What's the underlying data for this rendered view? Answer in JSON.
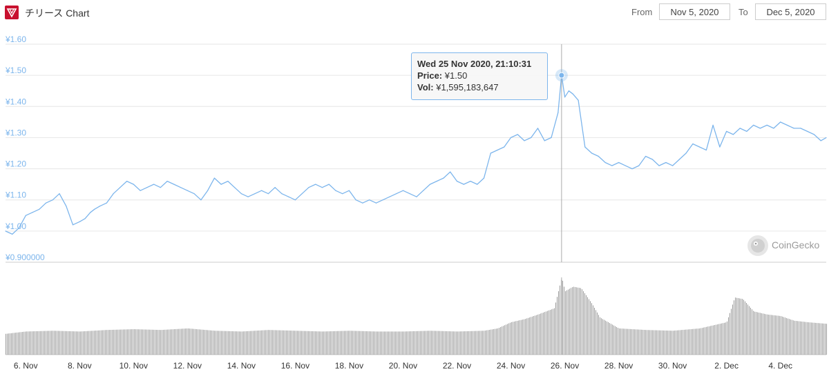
{
  "header": {
    "title": "チリース Chart",
    "from_label": "From",
    "from_value": "Nov 5, 2020",
    "to_label": "To",
    "to_value": "Dec 5, 2020"
  },
  "tooltip": {
    "date": "Wed 25 Nov 2020, 21:10:31",
    "price_label": "Price:",
    "price_value": "¥1.50",
    "vol_label": "Vol:",
    "vol_value": "¥1,595,183,647"
  },
  "watermark": "CoinGecko",
  "colors": {
    "line": "#7cb5ec",
    "volume": "#999999",
    "brand": "#c8102e",
    "axis_text": "#7cb5ec"
  },
  "chart_data": {
    "type": "line",
    "title": "チリース Chart",
    "xlabel": "",
    "ylabel": "",
    "y_tick_labels": [
      "¥0.900000",
      "¥1.00",
      "¥1.10",
      "¥1.20",
      "¥1.30",
      "¥1.40",
      "¥1.50",
      "¥1.60"
    ],
    "y_ticks": [
      0.9,
      1.0,
      1.1,
      1.2,
      1.3,
      1.4,
      1.5,
      1.6
    ],
    "ylim": [
      0.9,
      1.6
    ],
    "xlim": [
      5.25,
      35.7
    ],
    "x_tick_labels": [
      "6. Nov",
      "8. Nov",
      "10. Nov",
      "12. Nov",
      "14. Nov",
      "16. Nov",
      "18. Nov",
      "20. Nov",
      "22. Nov",
      "24. Nov",
      "26. Nov",
      "28. Nov",
      "30. Nov",
      "2. Dec",
      "4. Dec"
    ],
    "x_ticks": [
      6,
      8,
      10,
      12,
      14,
      16,
      18,
      20,
      22,
      24,
      26,
      28,
      30,
      32,
      34
    ],
    "grid": true,
    "legend": "none",
    "crosshair_x": 25.88,
    "series": [
      {
        "type": "line",
        "x": [
          5.25,
          5.5,
          5.75,
          6.0,
          6.25,
          6.5,
          6.75,
          7.0,
          7.25,
          7.5,
          7.75,
          8.0,
          8.2,
          8.4,
          8.55,
          8.75,
          9.0,
          9.25,
          9.5,
          9.75,
          10.0,
          10.25,
          10.5,
          10.75,
          11.0,
          11.25,
          11.5,
          11.75,
          12.0,
          12.25,
          12.5,
          12.75,
          13.0,
          13.25,
          13.5,
          13.75,
          14.0,
          14.25,
          14.5,
          14.75,
          15.0,
          15.25,
          15.5,
          15.75,
          16.0,
          16.25,
          16.5,
          16.75,
          17.0,
          17.25,
          17.5,
          17.75,
          18.0,
          18.25,
          18.5,
          18.75,
          19.0,
          19.25,
          19.5,
          19.75,
          20.0,
          20.25,
          20.5,
          20.75,
          21.0,
          21.25,
          21.5,
          21.75,
          22.0,
          22.25,
          22.5,
          22.75,
          23.0,
          23.25,
          23.5,
          23.75,
          24.0,
          24.25,
          24.5,
          24.75,
          25.0,
          25.25,
          25.5,
          25.75,
          25.88,
          26.0,
          26.15,
          26.3,
          26.5,
          26.75,
          27.0,
          27.25,
          27.5,
          27.75,
          28.0,
          28.25,
          28.5,
          28.75,
          29.0,
          29.25,
          29.5,
          29.75,
          30.0,
          30.25,
          30.5,
          30.75,
          31.0,
          31.25,
          31.5,
          31.75,
          32.0,
          32.25,
          32.5,
          32.75,
          33.0,
          33.25,
          33.5,
          33.75,
          34.0,
          34.25,
          34.5,
          34.75,
          35.0,
          35.25,
          35.5,
          35.7
        ],
        "values": [
          1.0,
          0.99,
          1.01,
          1.05,
          1.06,
          1.07,
          1.09,
          1.1,
          1.12,
          1.08,
          1.02,
          1.03,
          1.04,
          1.06,
          1.07,
          1.08,
          1.09,
          1.12,
          1.14,
          1.16,
          1.15,
          1.13,
          1.14,
          1.15,
          1.14,
          1.16,
          1.15,
          1.14,
          1.13,
          1.12,
          1.1,
          1.13,
          1.17,
          1.15,
          1.16,
          1.14,
          1.12,
          1.11,
          1.12,
          1.13,
          1.12,
          1.14,
          1.12,
          1.11,
          1.1,
          1.12,
          1.14,
          1.15,
          1.14,
          1.15,
          1.13,
          1.12,
          1.13,
          1.1,
          1.09,
          1.1,
          1.09,
          1.1,
          1.11,
          1.12,
          1.13,
          1.12,
          1.11,
          1.13,
          1.15,
          1.16,
          1.17,
          1.19,
          1.16,
          1.15,
          1.16,
          1.15,
          1.17,
          1.25,
          1.26,
          1.27,
          1.3,
          1.31,
          1.29,
          1.3,
          1.33,
          1.29,
          1.3,
          1.38,
          1.5,
          1.43,
          1.45,
          1.44,
          1.42,
          1.27,
          1.25,
          1.24,
          1.22,
          1.21,
          1.22,
          1.21,
          1.2,
          1.21,
          1.24,
          1.23,
          1.21,
          1.22,
          1.21,
          1.23,
          1.25,
          1.28,
          1.27,
          1.26,
          1.34,
          1.27,
          1.32,
          1.31,
          1.33,
          1.32,
          1.34,
          1.33,
          1.34,
          1.33,
          1.35,
          1.34,
          1.33,
          1.33,
          1.32,
          1.31,
          1.29,
          1.3
        ]
      },
      {
        "type": "volume",
        "name": "",
        "x": [
          5.25,
          6.0,
          7.0,
          8.0,
          9.0,
          10.0,
          11.0,
          12.0,
          13.0,
          14.0,
          15.0,
          16.0,
          17.0,
          18.0,
          19.0,
          20.0,
          21.0,
          22.0,
          23.0,
          23.5,
          24.0,
          24.5,
          25.0,
          25.3,
          25.6,
          25.88,
          26.0,
          26.3,
          26.6,
          27.0,
          27.3,
          27.6,
          28.0,
          29.0,
          30.0,
          31.0,
          31.5,
          32.0,
          32.3,
          32.6,
          33.0,
          33.5,
          34.0,
          34.5,
          35.0,
          35.7
        ],
        "values": [
          0.27,
          0.3,
          0.31,
          0.3,
          0.32,
          0.33,
          0.32,
          0.34,
          0.31,
          0.3,
          0.32,
          0.31,
          0.3,
          0.31,
          0.3,
          0.3,
          0.31,
          0.3,
          0.31,
          0.34,
          0.42,
          0.46,
          0.52,
          0.56,
          0.6,
          1.0,
          0.82,
          0.88,
          0.86,
          0.66,
          0.48,
          0.42,
          0.34,
          0.32,
          0.31,
          0.34,
          0.38,
          0.42,
          0.74,
          0.72,
          0.56,
          0.52,
          0.5,
          0.44,
          0.42,
          0.4
        ]
      }
    ]
  }
}
